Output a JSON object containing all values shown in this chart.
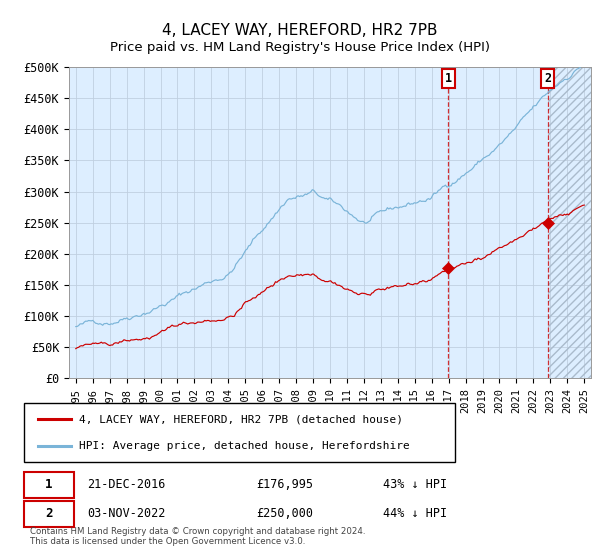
{
  "title": "4, LACEY WAY, HEREFORD, HR2 7PB",
  "subtitle": "Price paid vs. HM Land Registry's House Price Index (HPI)",
  "ylim": [
    0,
    500000
  ],
  "yticks": [
    0,
    50000,
    100000,
    150000,
    200000,
    250000,
    300000,
    350000,
    400000,
    450000,
    500000
  ],
  "ytick_labels": [
    "£0",
    "£50K",
    "£100K",
    "£150K",
    "£200K",
    "£250K",
    "£300K",
    "£350K",
    "£400K",
    "£450K",
    "£500K"
  ],
  "hpi_color": "#7ab4d8",
  "price_color": "#cc0000",
  "bg_color": "#ddeeff",
  "grid_color": "#c0cfe0",
  "sale1_date_label": "21-DEC-2016",
  "sale1_price": 176995,
  "sale1_hpi_pct": "43% ↓ HPI",
  "sale2_date_label": "03-NOV-2022",
  "sale2_price": 250000,
  "sale2_hpi_pct": "44% ↓ HPI",
  "sale1_x": 2016.97,
  "sale2_x": 2022.84,
  "legend_label1": "4, LACEY WAY, HEREFORD, HR2 7PB (detached house)",
  "legend_label2": "HPI: Average price, detached house, Herefordshire",
  "footnote": "Contains HM Land Registry data © Crown copyright and database right 2024.\nThis data is licensed under the Open Government Licence v3.0.",
  "xlim_start": 1994.6,
  "xlim_end": 2025.4
}
